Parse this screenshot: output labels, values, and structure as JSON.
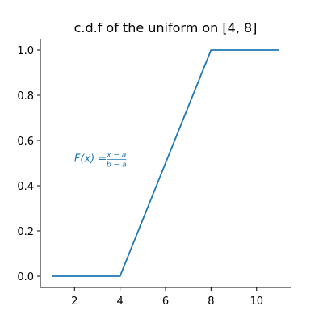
{
  "chart_data": {
    "type": "line",
    "title": "c.d.f of the uniform on [4, 8]",
    "xlabel": "",
    "ylabel": "",
    "xlim": [
      0.5,
      11.5
    ],
    "ylim": [
      -0.05,
      1.05
    ],
    "xticks": [
      2,
      4,
      6,
      8,
      10
    ],
    "xtick_labels": [
      "2",
      "4",
      "6",
      "8",
      "10"
    ],
    "yticks": [
      0.0,
      0.2,
      0.4,
      0.6,
      0.8,
      1.0
    ],
    "ytick_labels": [
      "0.0",
      "0.2",
      "0.4",
      "0.6",
      "0.8",
      "1.0"
    ],
    "grid": false,
    "series": [
      {
        "color": "#1f77b4",
        "x": [
          1,
          4,
          8,
          11
        ],
        "y": [
          0,
          0,
          1,
          1
        ]
      }
    ],
    "annotations": [
      {
        "text": "F(x) = (x−a)/(b−a)",
        "lhs": "F(x) =",
        "numerator": "x − a",
        "denominator": "b − a",
        "x": 4.2,
        "y": 0.52,
        "color": "#1f77b4"
      }
    ]
  }
}
